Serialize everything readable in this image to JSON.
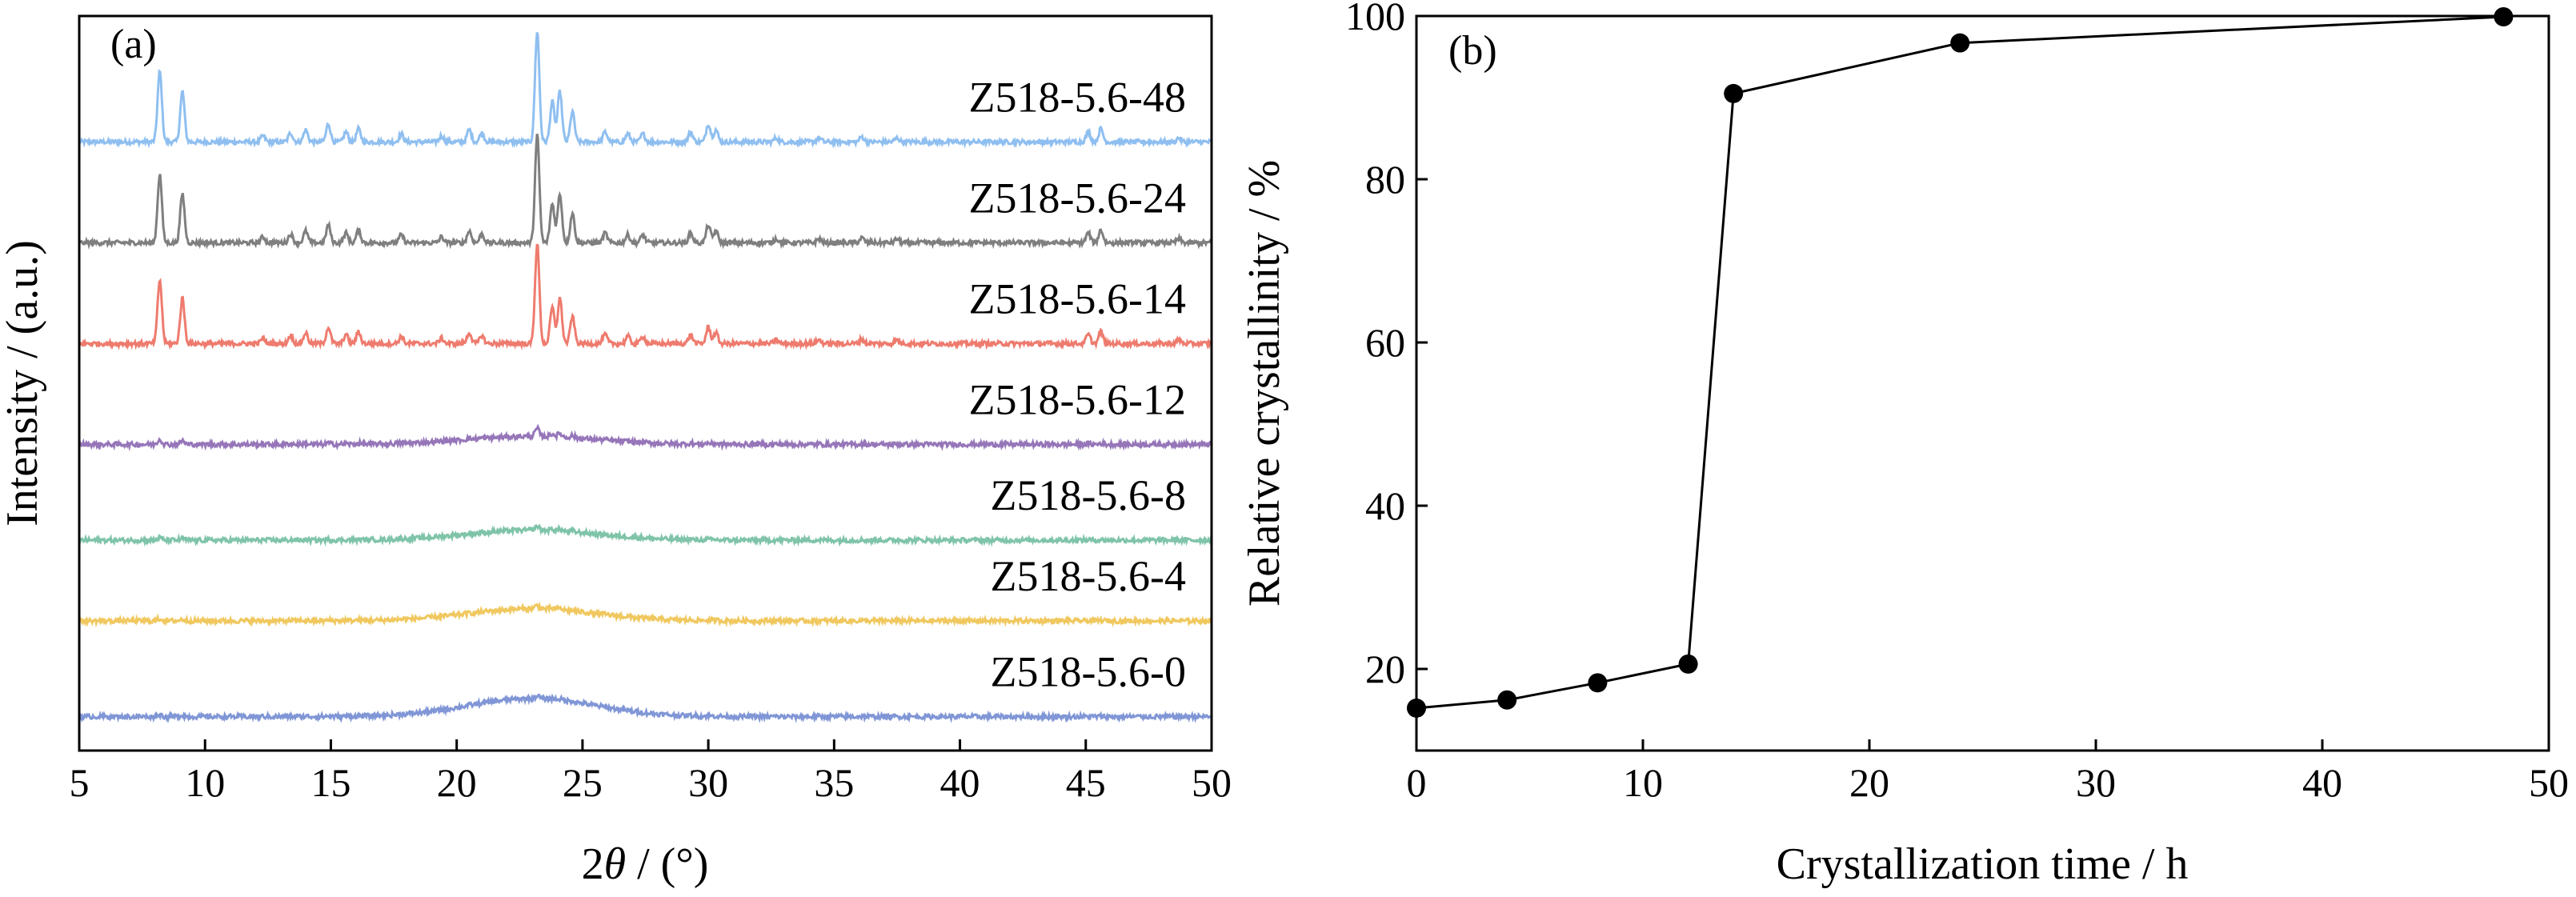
{
  "chart_data": [
    {
      "type": "line",
      "panel_label": "(a)",
      "xlabel_prefix": "2",
      "xlabel_symbol": "θ",
      "xlabel_suffix": " / (°)",
      "ylabel": "Intensity / (a.u.)",
      "xlim": [
        5,
        50
      ],
      "x_ticks": [
        "5",
        "10",
        "15",
        "20",
        "25",
        "30",
        "35",
        "40",
        "45",
        "50"
      ],
      "y_ticks_shown": false,
      "grid": false,
      "series": [
        {
          "name": "Z518-5.6-48",
          "color": "#8fbff0",
          "baseline": 6.1,
          "amorphous": 0.0,
          "crystallinity": 1.0
        },
        {
          "name": "Z518-5.6-24",
          "color": "#7f7f7f",
          "baseline": 5.1,
          "amorphous": 0.0,
          "crystallinity": 0.97
        },
        {
          "name": "Z518-5.6-14",
          "color": "#ee7b6e",
          "baseline": 4.1,
          "amorphous": 0.0,
          "crystallinity": 0.9
        },
        {
          "name": "Z518-5.6-12",
          "color": "#9676b9",
          "baseline": 3.1,
          "amorphous": 0.08,
          "crystallinity": 0.07
        },
        {
          "name": "Z518-5.6-8",
          "color": "#7fc4a9",
          "baseline": 2.15,
          "amorphous": 0.1,
          "crystallinity": 0.035
        },
        {
          "name": "Z518-5.6-4",
          "color": "#f0c85f",
          "baseline": 1.35,
          "amorphous": 0.12,
          "crystallinity": 0.03
        },
        {
          "name": "Z518-5.6-0",
          "color": "#8096d6",
          "baseline": 0.4,
          "amorphous": 0.18,
          "crystallinity": 0.025
        }
      ],
      "peaks": [
        {
          "x": 8.2,
          "h": 0.7
        },
        {
          "x": 9.1,
          "h": 0.5
        },
        {
          "x": 12.3,
          "h": 0.06
        },
        {
          "x": 13.4,
          "h": 0.09
        },
        {
          "x": 14.0,
          "h": 0.12
        },
        {
          "x": 14.9,
          "h": 0.18
        },
        {
          "x": 15.6,
          "h": 0.1
        },
        {
          "x": 16.1,
          "h": 0.13
        },
        {
          "x": 17.8,
          "h": 0.08
        },
        {
          "x": 19.4,
          "h": 0.06
        },
        {
          "x": 20.5,
          "h": 0.12
        },
        {
          "x": 21.0,
          "h": 0.09
        },
        {
          "x": 23.2,
          "h": 1.1
        },
        {
          "x": 23.8,
          "h": 0.4
        },
        {
          "x": 24.1,
          "h": 0.5
        },
        {
          "x": 24.6,
          "h": 0.3
        },
        {
          "x": 25.9,
          "h": 0.1
        },
        {
          "x": 26.8,
          "h": 0.08
        },
        {
          "x": 27.4,
          "h": 0.08
        },
        {
          "x": 29.3,
          "h": 0.1
        },
        {
          "x": 30.0,
          "h": 0.18
        },
        {
          "x": 30.3,
          "h": 0.12
        },
        {
          "x": 32.7,
          "h": 0.04
        },
        {
          "x": 34.4,
          "h": 0.04
        },
        {
          "x": 36.1,
          "h": 0.05
        },
        {
          "x": 37.5,
          "h": 0.04
        },
        {
          "x": 45.1,
          "h": 0.1
        },
        {
          "x": 45.6,
          "h": 0.13
        },
        {
          "x": 48.7,
          "h": 0.04
        }
      ]
    },
    {
      "type": "line",
      "panel_label": "(b)",
      "xlabel": "Crystallization time / h",
      "ylabel": "Relative crystallinity / %",
      "xlim": [
        0,
        50
      ],
      "ylim": [
        10,
        100
      ],
      "x_ticks": [
        "0",
        "10",
        "20",
        "30",
        "40",
        "50"
      ],
      "y_ticks": [
        "20",
        "40",
        "60",
        "80",
        "100"
      ],
      "grid": false,
      "markers": "filled-circle",
      "series": [
        {
          "x": [
            0,
            4,
            8,
            12,
            14,
            24,
            48
          ],
          "y": [
            15.2,
            16.2,
            18.3,
            20.6,
            90.5,
            96.7,
            99.9
          ]
        }
      ]
    }
  ]
}
